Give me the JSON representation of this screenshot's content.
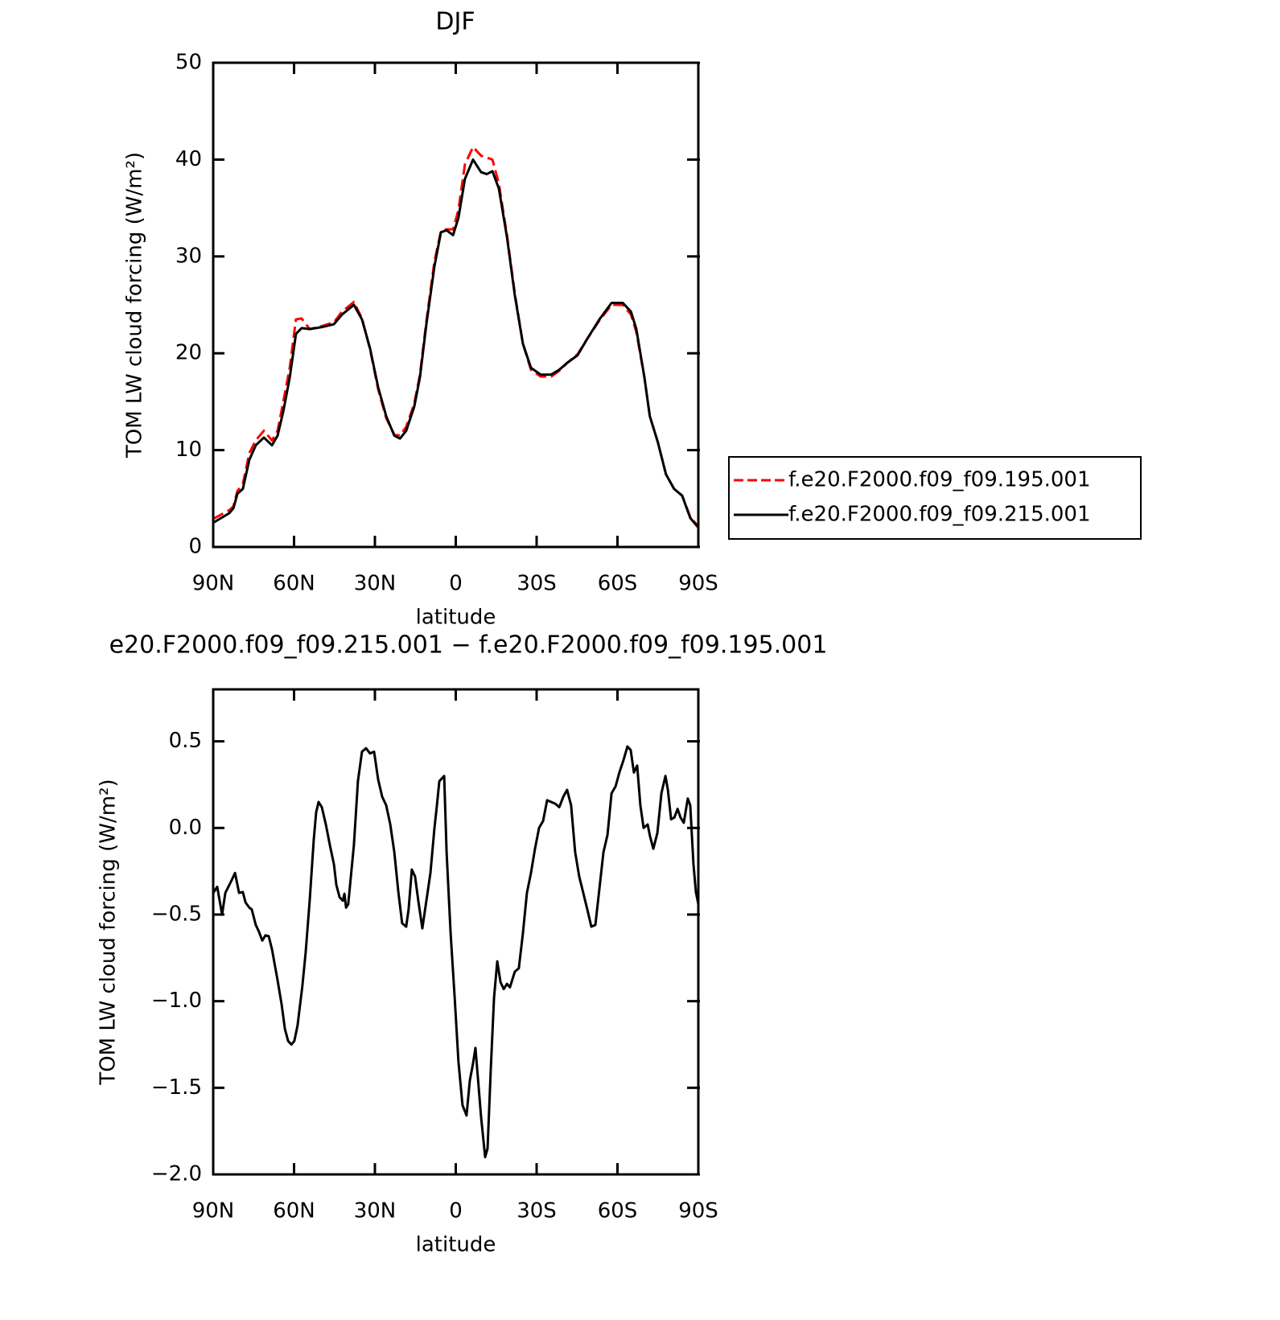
{
  "chart_data": [
    {
      "type": "line",
      "title": "DJF",
      "x_label": "latitude",
      "y_label": "TOM LW cloud forcing (W/m²)",
      "xlim": [
        90,
        -90
      ],
      "xticks": [
        {
          "value": 90,
          "label": "90N"
        },
        {
          "value": 60,
          "label": "60N"
        },
        {
          "value": 30,
          "label": "30N"
        },
        0,
        {
          "value": -30,
          "label": "30S"
        },
        {
          "value": -60,
          "label": "60S"
        },
        {
          "value": -90,
          "label": "90S"
        }
      ],
      "ylim": [
        0,
        50
      ],
      "yticks": [
        0,
        10,
        20,
        30,
        40,
        50
      ],
      "legend": "right",
      "x": [
        90,
        84,
        82.5,
        81,
        79,
        76.6,
        74.2,
        71.2,
        68.2,
        66.1,
        64,
        61.6,
        59.3,
        57.2,
        54.2,
        49.7,
        45.2,
        42.2,
        37.8,
        34.8,
        31.8,
        28.8,
        25.8,
        22.8,
        20.7,
        18.4,
        15.4,
        13.3,
        10.9,
        7.9,
        5.5,
        3.4,
        1,
        -1,
        -3.4,
        -6.4,
        -9.4,
        -11.5,
        -13.6,
        -16,
        -19,
        -21.9,
        -24.9,
        -27.9,
        -31.5,
        -35.4,
        -38.4,
        -41.3,
        -45.2,
        -48.8,
        -53.3,
        -57.8,
        -62,
        -65,
        -67,
        -70,
        -72,
        -75,
        -78,
        -81,
        -84,
        -87,
        -90
      ],
      "series": [
        {
          "name": "f.e20.F2000.f09_f09.195.001",
          "color": "#ff0000",
          "line_style": "dashed",
          "values": [
            2.9,
            3.8,
            4.2,
            5.8,
            6.5,
            9.7,
            11,
            12,
            11,
            12,
            15,
            18.5,
            23.5,
            23.6,
            22.5,
            22.8,
            23.2,
            24.3,
            25.3,
            23.6,
            20.4,
            16.3,
            13.3,
            11.6,
            11.5,
            12.4,
            14.8,
            17.8,
            23.3,
            29.5,
            32.6,
            32.8,
            32.8,
            34.8,
            39.5,
            41.3,
            40.4,
            40.2,
            40,
            37.5,
            32.2,
            26.2,
            21,
            18.3,
            17.6,
            17.6,
            18.2,
            19,
            19.9,
            21.5,
            23.4,
            25,
            25,
            24,
            22.2,
            17.5,
            13.5,
            10.8,
            7.5,
            6,
            5.3,
            3.1,
            2.1
          ]
        },
        {
          "name": "f.e20.F2000.f09_f09.215.001",
          "color": "#000000",
          "line_style": "solid",
          "values": [
            2.5,
            3.5,
            4,
            5.5,
            6,
            9,
            10.5,
            11.3,
            10.5,
            11.5,
            14,
            17.5,
            22,
            22.6,
            22.5,
            22.7,
            23,
            24,
            25,
            23.5,
            20.5,
            16.5,
            13.5,
            11.5,
            11.2,
            12,
            14.5,
            17.5,
            23,
            29,
            32.5,
            32.7,
            32.2,
            34,
            38,
            40,
            38.7,
            38.5,
            38.8,
            37,
            32,
            26,
            21,
            18.5,
            17.8,
            17.8,
            18.3,
            19,
            19.8,
            21.5,
            23.5,
            25.2,
            25.2,
            24.3,
            22.5,
            17.5,
            13.5,
            10.8,
            7.5,
            6,
            5.3,
            3,
            2
          ]
        }
      ]
    },
    {
      "type": "line",
      "title": "e20.F2000.f09_f09.215.001 − f.e20.F2000.f09_f09.195.001",
      "x_label": "latitude",
      "y_label": "TOM LW cloud forcing (W/m²)",
      "xlim": [
        90,
        -90
      ],
      "xticks": [
        {
          "value": 90,
          "label": "90N"
        },
        {
          "value": 60,
          "label": "60N"
        },
        {
          "value": 30,
          "label": "30N"
        },
        0,
        {
          "value": -30,
          "label": "30S"
        },
        {
          "value": -60,
          "label": "60S"
        },
        {
          "value": -90,
          "label": "90S"
        }
      ],
      "ylim": [
        -2.0,
        0.8
      ],
      "yticks": [
        {
          "value": -2.0,
          "label": "−2.0"
        },
        {
          "value": -1.5,
          "label": "−1.5"
        },
        {
          "value": -1.0,
          "label": "−1.0"
        },
        {
          "value": -0.5,
          "label": "−0.5"
        },
        {
          "value": 0.0,
          "label": "0.0"
        },
        0.5
      ],
      "x": [
        90,
        88.5,
        86.7,
        85.5,
        83.1,
        81.9,
        80.4,
        79,
        78,
        76.6,
        75.7,
        74.2,
        73,
        71.8,
        70.6,
        69.4,
        68.2,
        66.1,
        64.6,
        63.4,
        62.2,
        61,
        59.9,
        58.7,
        56.9,
        55.7,
        54.2,
        52.7,
        51.8,
        50.9,
        49.7,
        48.2,
        46.7,
        45.2,
        44.3,
        43.1,
        41.9,
        41.3,
        40.7,
        39.9,
        37.8,
        36.3,
        34.8,
        33.3,
        31.8,
        30.3,
        28.8,
        27.3,
        25.8,
        24.3,
        22.8,
        21.3,
        19.9,
        18.4,
        17.5,
        16.3,
        15.1,
        13.9,
        12.4,
        10.9,
        9.4,
        7.9,
        7,
        6.1,
        4.3,
        3.4,
        1.9,
        0.4,
        -1,
        -2.5,
        -4,
        -5.2,
        -6.4,
        -7.3,
        -8.2,
        -9.4,
        -10.9,
        -11.8,
        -13,
        -14.2,
        -15.4,
        -16.6,
        -17.8,
        -19,
        -20.1,
        -21.9,
        -23.4,
        -24.9,
        -26.4,
        -27.9,
        -29.4,
        -30.9,
        -32.4,
        -33.9,
        -35.4,
        -36.9,
        -38.4,
        -39.9,
        -41.3,
        -42.8,
        -44.3,
        -45.8,
        -47.3,
        -48.8,
        -50.3,
        -51.8,
        -53.3,
        -54.8,
        -56.3,
        -57.8,
        -59.3,
        -60.7,
        -62.2,
        -63.7,
        -64.9,
        -66.1,
        -67.3,
        -68.5,
        -69.7,
        -71.2,
        -72.1,
        -73.3,
        -74.8,
        -76.3,
        -77.8,
        -78.7,
        -79.9,
        -81.1,
        -82.3,
        -83.4,
        -84.6,
        -86.1,
        -87,
        -88.2,
        -89.1,
        -90
      ],
      "series": [
        {
          "color": "#000000",
          "line_style": "solid",
          "values": [
            -0.375,
            -0.34,
            -0.5,
            -0.375,
            -0.3,
            -0.26,
            -0.375,
            -0.37,
            -0.43,
            -0.46,
            -0.47,
            -0.56,
            -0.6,
            -0.65,
            -0.62,
            -0.625,
            -0.7,
            -0.88,
            -1.02,
            -1.16,
            -1.23,
            -1.25,
            -1.23,
            -1.14,
            -0.91,
            -0.72,
            -0.42,
            -0.07,
            0.09,
            0.15,
            0.12,
            0.02,
            -0.1,
            -0.21,
            -0.33,
            -0.4,
            -0.42,
            -0.38,
            -0.46,
            -0.44,
            -0.1,
            0.27,
            0.44,
            0.46,
            0.43,
            0.44,
            0.28,
            0.18,
            0.13,
            0.02,
            -0.14,
            -0.37,
            -0.55,
            -0.57,
            -0.47,
            -0.24,
            -0.28,
            -0.42,
            -0.58,
            -0.42,
            -0.26,
            0.0,
            0.13,
            0.27,
            0.3,
            -0.14,
            -0.61,
            -0.98,
            -1.35,
            -1.6,
            -1.66,
            -1.46,
            -1.36,
            -1.27,
            -1.44,
            -1.67,
            -1.9,
            -1.85,
            -1.39,
            -0.98,
            -0.77,
            -0.89,
            -0.93,
            -0.9,
            -0.92,
            -0.83,
            -0.81,
            -0.61,
            -0.375,
            -0.26,
            -0.12,
            0.0,
            0.04,
            0.16,
            0.15,
            0.14,
            0.12,
            0.18,
            0.22,
            0.13,
            -0.14,
            -0.28,
            -0.375,
            -0.47,
            -0.57,
            -0.56,
            -0.35,
            -0.14,
            -0.04,
            0.2,
            0.24,
            0.32,
            0.39,
            0.47,
            0.45,
            0.32,
            0.36,
            0.13,
            0.0,
            0.02,
            -0.05,
            -0.12,
            -0.03,
            0.2,
            0.3,
            0.22,
            0.05,
            0.06,
            0.11,
            0.06,
            0.03,
            0.17,
            0.13,
            -0.21,
            -0.37,
            -0.44
          ]
        }
      ]
    }
  ]
}
